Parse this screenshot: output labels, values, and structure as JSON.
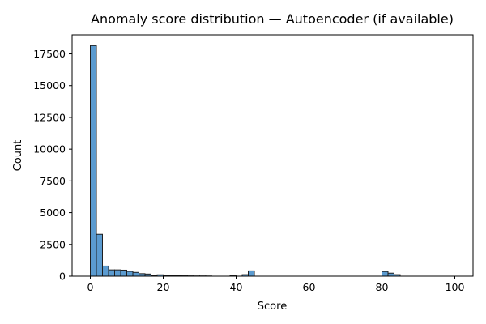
{
  "chart_data": {
    "type": "bar",
    "title": "Anomaly score distribution — Autoencoder (if available)",
    "xlabel": "Score",
    "ylabel": "Count",
    "xlim": [
      -5,
      105
    ],
    "ylim": [
      0,
      19000
    ],
    "xticks": [
      0,
      20,
      40,
      60,
      80,
      100
    ],
    "yticks": [
      0,
      2500,
      5000,
      7500,
      10000,
      12500,
      15000,
      17500
    ],
    "grid": false,
    "bin_width": 1.667,
    "bar_color": "#5b9bd0",
    "edge_color": "#1f1f1f",
    "bins": [
      {
        "x": 0.0,
        "count": 18150
      },
      {
        "x": 1.667,
        "count": 3300
      },
      {
        "x": 3.333,
        "count": 800
      },
      {
        "x": 5.0,
        "count": 500
      },
      {
        "x": 6.667,
        "count": 500
      },
      {
        "x": 8.333,
        "count": 480
      },
      {
        "x": 10.0,
        "count": 380
      },
      {
        "x": 11.667,
        "count": 300
      },
      {
        "x": 13.333,
        "count": 200
      },
      {
        "x": 15.0,
        "count": 170
      },
      {
        "x": 16.667,
        "count": 60
      },
      {
        "x": 18.333,
        "count": 110
      },
      {
        "x": 20.0,
        "count": 40
      },
      {
        "x": 21.667,
        "count": 50
      },
      {
        "x": 23.333,
        "count": 40
      },
      {
        "x": 25.0,
        "count": 30
      },
      {
        "x": 26.667,
        "count": 25
      },
      {
        "x": 28.333,
        "count": 20
      },
      {
        "x": 30.0,
        "count": 20
      },
      {
        "x": 31.667,
        "count": 15
      },
      {
        "x": 38.333,
        "count": 30
      },
      {
        "x": 41.667,
        "count": 120
      },
      {
        "x": 43.333,
        "count": 420
      },
      {
        "x": 80.0,
        "count": 370
      },
      {
        "x": 81.667,
        "count": 240
      },
      {
        "x": 83.333,
        "count": 120
      }
    ]
  }
}
